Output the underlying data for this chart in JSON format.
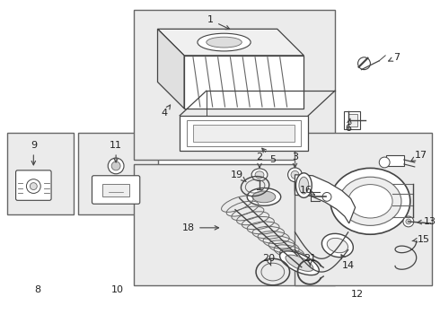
{
  "bg": "#ffffff",
  "lc": "#444444",
  "lc2": "#666666",
  "box_bg": "#ebebeb",
  "figsize": [
    4.9,
    3.6
  ],
  "dpi": 100
}
